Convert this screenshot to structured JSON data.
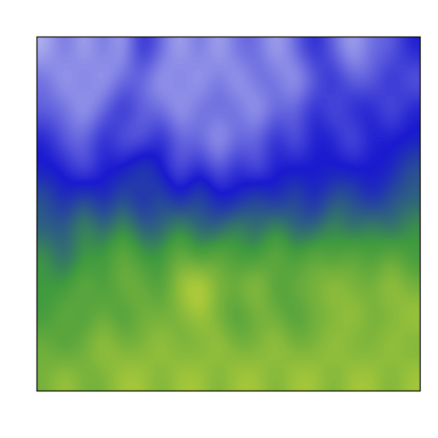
{
  "chart_data": {
    "type": "heatmap",
    "tick_labels": false,
    "zlim": [
      0,
      10
    ],
    "cells": [
      [
        1,
        2,
        1,
        2,
        1,
        3,
        2,
        1,
        2,
        1,
        2,
        2,
        1,
        2,
        3,
        2,
        1,
        2,
        2,
        3
      ],
      [
        2,
        1,
        2,
        1,
        2,
        2,
        1,
        2,
        1,
        2,
        1,
        2,
        2,
        1,
        2,
        3,
        2,
        2,
        3,
        2
      ],
      [
        2,
        2,
        1,
        2,
        3,
        2,
        2,
        1,
        2,
        2,
        2,
        1,
        2,
        2,
        3,
        2,
        3,
        3,
        2,
        3
      ],
      [
        3,
        2,
        2,
        3,
        2,
        2,
        3,
        2,
        2,
        1,
        2,
        2,
        3,
        2,
        3,
        3,
        2,
        3,
        3,
        3
      ],
      [
        3,
        3,
        2,
        3,
        3,
        4,
        3,
        2,
        3,
        2,
        3,
        2,
        3,
        3,
        3,
        3,
        3,
        3,
        3,
        4
      ],
      [
        4,
        3,
        4,
        3,
        4,
        3,
        4,
        3,
        4,
        3,
        3,
        4,
        3,
        4,
        3,
        4,
        4,
        3,
        4,
        4
      ],
      [
        4,
        4,
        5,
        4,
        5,
        4,
        4,
        5,
        4,
        4,
        5,
        4,
        5,
        4,
        4,
        5,
        4,
        5,
        4,
        5
      ],
      [
        5,
        4,
        5,
        5,
        6,
        5,
        5,
        6,
        5,
        6,
        5,
        5,
        6,
        5,
        6,
        5,
        6,
        5,
        6,
        5
      ],
      [
        5,
        5,
        6,
        5,
        6,
        6,
        5,
        7,
        8,
        6,
        6,
        7,
        5,
        6,
        6,
        7,
        6,
        6,
        7,
        6
      ],
      [
        5,
        6,
        5,
        6,
        5,
        6,
        6,
        6,
        7,
        6,
        5,
        6,
        6,
        5,
        6,
        6,
        7,
        6,
        6,
        7
      ],
      [
        6,
        5,
        6,
        7,
        6,
        6,
        7,
        6,
        6,
        7,
        6,
        6,
        7,
        6,
        6,
        7,
        6,
        6,
        7,
        6
      ],
      [
        6,
        7,
        6,
        6,
        7,
        7,
        6,
        7,
        7,
        6,
        7,
        7,
        6,
        7,
        7,
        6,
        7,
        7,
        6,
        7
      ]
    ]
  }
}
